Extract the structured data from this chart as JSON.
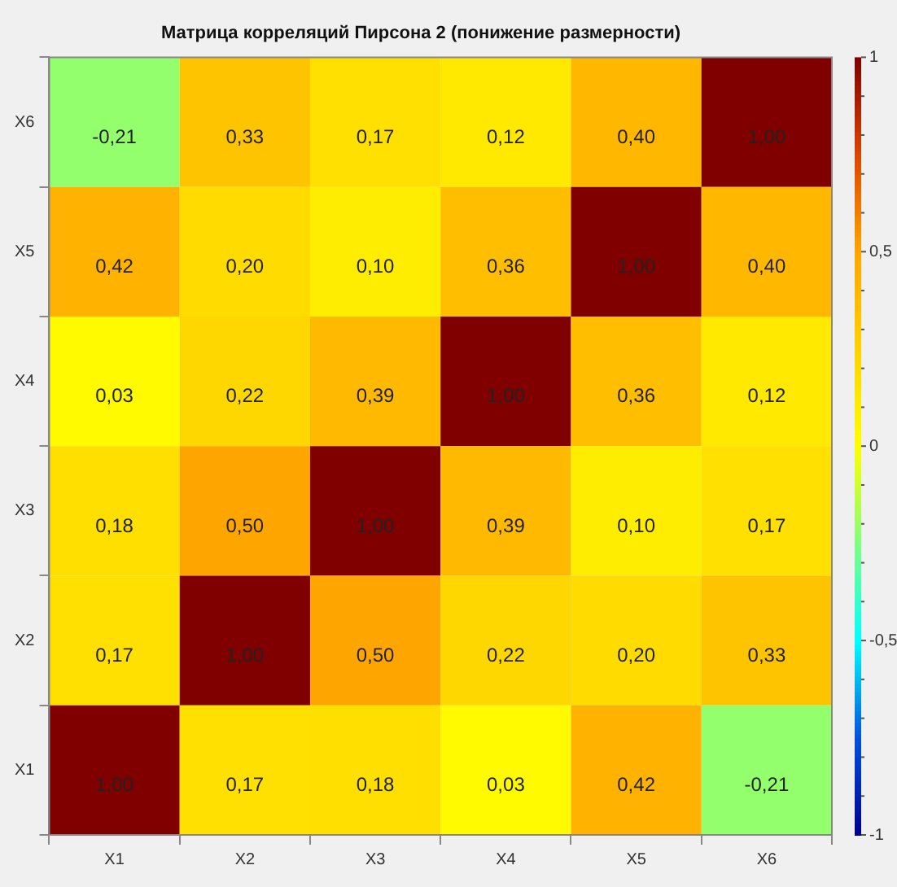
{
  "chart_data": {
    "type": "heatmap",
    "title": "Матрица корреляций Пирсона 2 (понижение размерности)",
    "categories": [
      "X1",
      "X2",
      "X3",
      "X4",
      "X5",
      "X6"
    ],
    "y_categories": [
      "X6",
      "X5",
      "X4",
      "X3",
      "X2",
      "X1"
    ],
    "cells": [
      [
        -0.21,
        0.33,
        0.17,
        0.12,
        0.4,
        1.0
      ],
      [
        0.42,
        0.2,
        0.1,
        0.36,
        1.0,
        0.4
      ],
      [
        0.03,
        0.22,
        0.39,
        1.0,
        0.36,
        0.12
      ],
      [
        0.18,
        0.5,
        1.0,
        0.39,
        0.1,
        0.17
      ],
      [
        0.17,
        1.0,
        0.5,
        0.22,
        0.2,
        0.33
      ],
      [
        1.0,
        0.17,
        0.18,
        0.03,
        0.42,
        -0.21
      ]
    ],
    "cell_labels": [
      [
        "-0,21",
        "0,33",
        "0,17",
        "0,12",
        "0,40",
        "1,00"
      ],
      [
        "0,42",
        "0,20",
        "0,10",
        "0,36",
        "1,00",
        "0,40"
      ],
      [
        "0,03",
        "0,22",
        "0,39",
        "1,00",
        "0,36",
        "0,12"
      ],
      [
        "0,18",
        "0,50",
        "1,00",
        "0,39",
        "0,10",
        "0,17"
      ],
      [
        "0,17",
        "1,00",
        "0,50",
        "0,22",
        "0,20",
        "0,33"
      ],
      [
        "1,00",
        "0,17",
        "0,18",
        "0,03",
        "0,42",
        "-0,21"
      ]
    ],
    "clim": [
      -1,
      1
    ],
    "cticks": [
      {
        "value": -1,
        "label": "-1"
      },
      {
        "value": -0.9,
        "label": null
      },
      {
        "value": -0.8,
        "label": null
      },
      {
        "value": -0.7,
        "label": null
      },
      {
        "value": -0.6,
        "label": null
      },
      {
        "value": -0.5,
        "label": "-0,5"
      },
      {
        "value": -0.4,
        "label": null
      },
      {
        "value": -0.3,
        "label": null
      },
      {
        "value": -0.2,
        "label": null
      },
      {
        "value": -0.1,
        "label": null
      },
      0,
      {
        "value": 0.1,
        "label": null
      },
      {
        "value": 0.2,
        "label": null
      },
      {
        "value": 0.3,
        "label": null
      },
      {
        "value": 0.4,
        "label": null
      },
      {
        "value": 0.5,
        "label": "0,5"
      },
      {
        "value": 0.6,
        "label": null
      },
      {
        "value": 0.7,
        "label": null
      },
      {
        "value": 0.8,
        "label": null
      },
      {
        "value": 0.9,
        "label": null
      },
      1
    ]
  }
}
